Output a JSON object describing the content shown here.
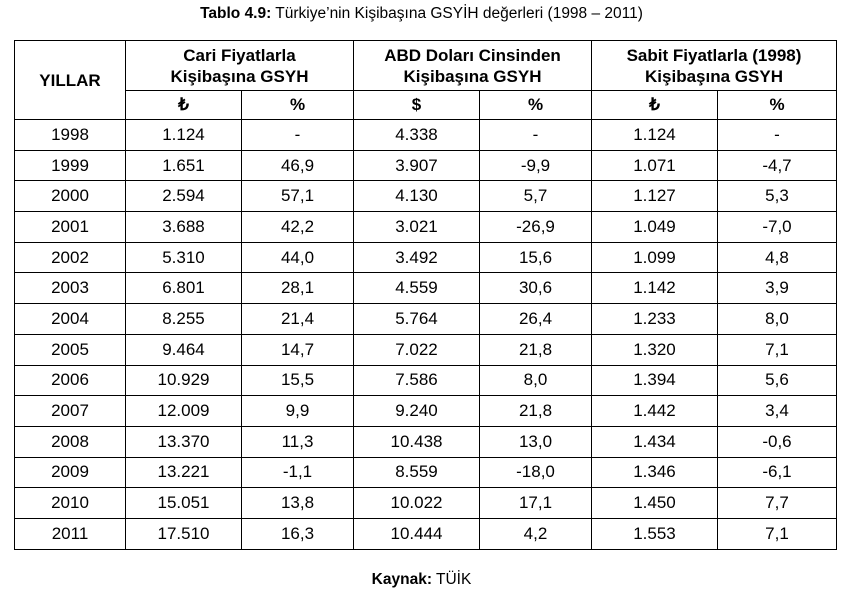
{
  "caption": {
    "label": "Tablo 4.9:",
    "text": " Türkiye’nin Kişibaşına GSYİH değerleri (1998 – 2011)"
  },
  "table": {
    "years_header": "YILLAR",
    "groups": [
      {
        "line1": "Cari Fiyatlarla",
        "line2": "Kişibaşına GSYH",
        "unit": "₺",
        "pct": "%"
      },
      {
        "line1": "ABD Doları Cinsinden",
        "line2": "Kişibaşına GSYH",
        "unit": "$",
        "pct": "%"
      },
      {
        "line1": "Sabit Fiyatlarla (1998)",
        "line2": "Kişibaşına GSYH",
        "unit": "₺",
        "pct": "%"
      }
    ],
    "rows": [
      [
        "1998",
        "1.124",
        "-",
        "4.338",
        "-",
        "1.124",
        "-"
      ],
      [
        "1999",
        "1.651",
        "46,9",
        "3.907",
        "-9,9",
        "1.071",
        "-4,7"
      ],
      [
        "2000",
        "2.594",
        "57,1",
        "4.130",
        "5,7",
        "1.127",
        "5,3"
      ],
      [
        "2001",
        "3.688",
        "42,2",
        "3.021",
        "-26,9",
        "1.049",
        "-7,0"
      ],
      [
        "2002",
        "5.310",
        "44,0",
        "3.492",
        "15,6",
        "1.099",
        "4,8"
      ],
      [
        "2003",
        "6.801",
        "28,1",
        "4.559",
        "30,6",
        "1.142",
        "3,9"
      ],
      [
        "2004",
        "8.255",
        "21,4",
        "5.764",
        "26,4",
        "1.233",
        "8,0"
      ],
      [
        "2005",
        "9.464",
        "14,7",
        "7.022",
        "21,8",
        "1.320",
        "7,1"
      ],
      [
        "2006",
        "10.929",
        "15,5",
        "7.586",
        "8,0",
        "1.394",
        "5,6"
      ],
      [
        "2007",
        "12.009",
        "9,9",
        "9.240",
        "21,8",
        "1.442",
        "3,4"
      ],
      [
        "2008",
        "13.370",
        "11,3",
        "10.438",
        "13,0",
        "1.434",
        "-0,6"
      ],
      [
        "2009",
        "13.221",
        "-1,1",
        "8.559",
        "-18,0",
        "1.346",
        "-6,1"
      ],
      [
        "2010",
        "15.051",
        "13,8",
        "10.022",
        "17,1",
        "1.450",
        "7,7"
      ],
      [
        "2011",
        "17.510",
        "16,3",
        "10.444",
        "4,2",
        "1.553",
        "7,1"
      ]
    ]
  },
  "source": {
    "label": "Kaynak:",
    "text": " TÜİK"
  }
}
